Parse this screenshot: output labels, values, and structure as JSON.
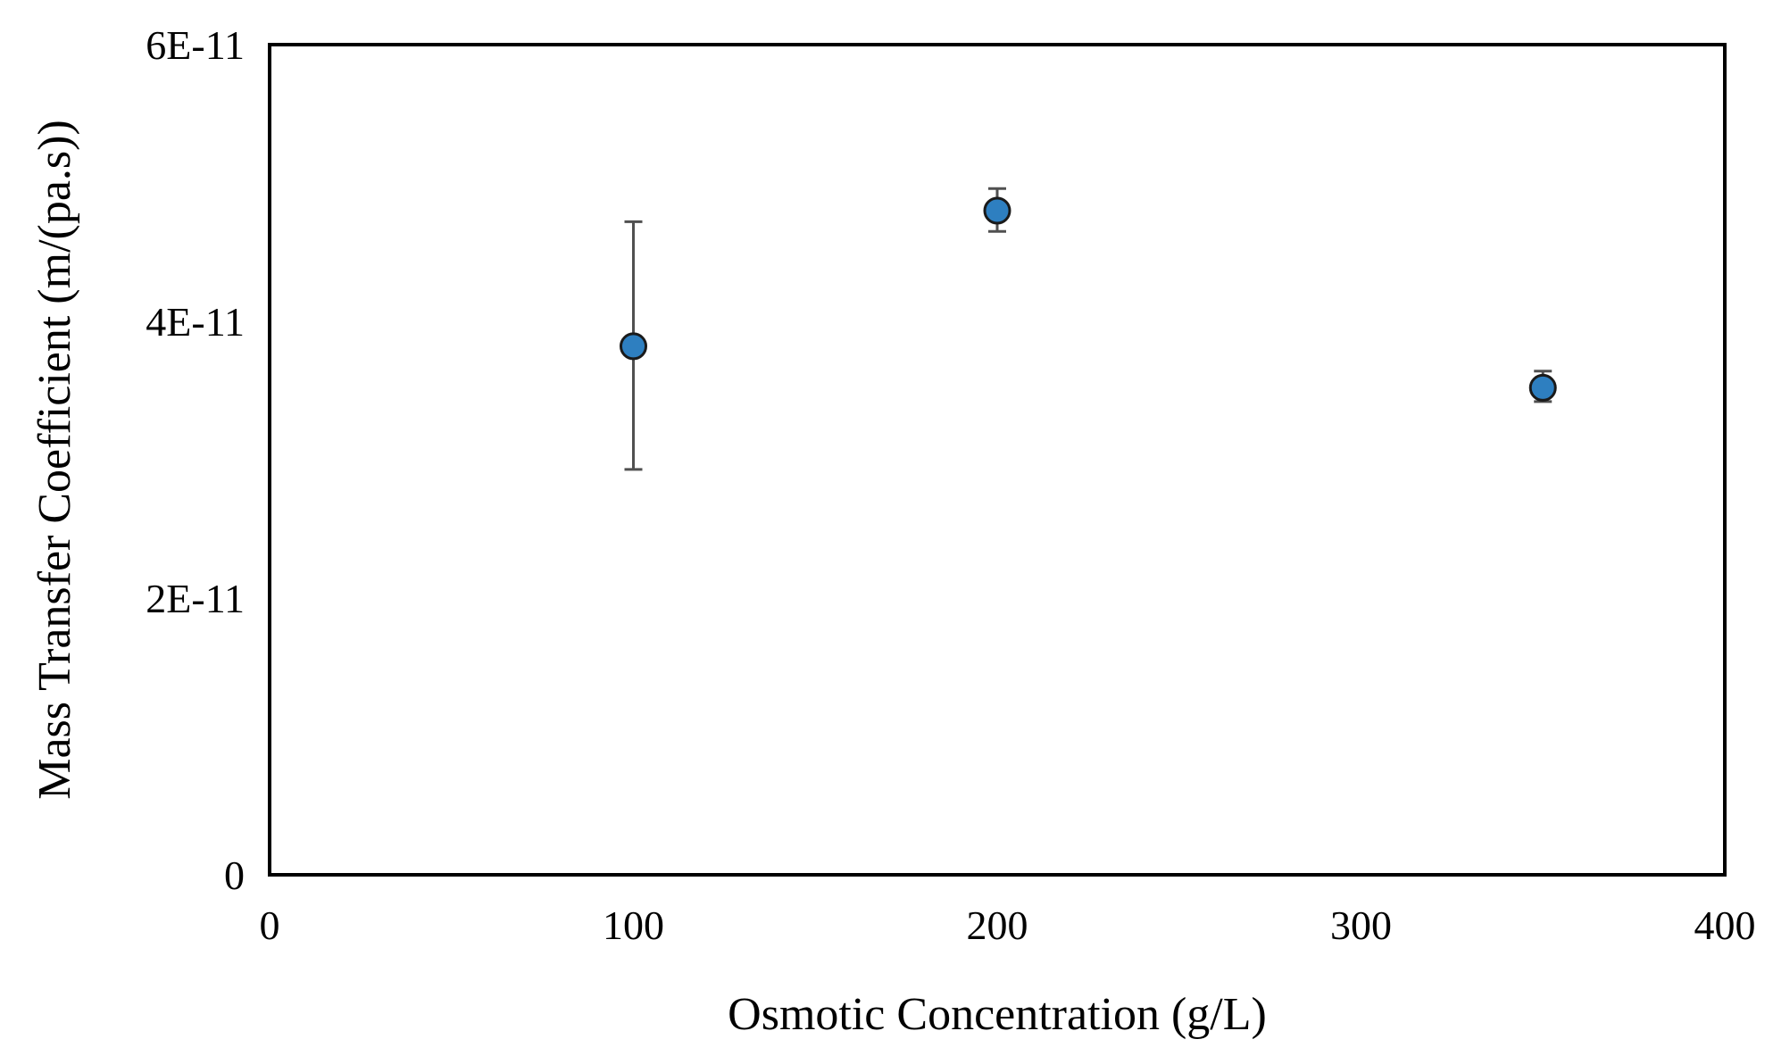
{
  "chart_data": {
    "type": "scatter",
    "title": "",
    "xlabel": "Osmotic Concentration (g/L)",
    "ylabel": "Mass Transfer Coefficient (m/(pa.s))",
    "xlim": [
      0,
      400
    ],
    "ylim": [
      0,
      6e-11
    ],
    "x_ticks": [
      0,
      100,
      200,
      300,
      400
    ],
    "x_tick_labels": [
      "0",
      "100",
      "200",
      "300",
      "400"
    ],
    "y_ticks": [
      0,
      2e-11,
      4e-11,
      6e-11
    ],
    "y_tick_labels": [
      "0",
      "2E-11",
      "4E-11",
      "6E-11"
    ],
    "grid": false,
    "legend": "none",
    "series": [
      {
        "x": [
          100,
          200,
          350
        ],
        "y": [
          3.82e-11,
          4.8e-11,
          3.52e-11
        ],
        "y_err_upper": [
          4.72e-11,
          4.96e-11,
          3.64e-11
        ],
        "y_err_lower": [
          2.93e-11,
          4.65e-11,
          3.42e-11
        ],
        "color": "#2e7fc0"
      }
    ]
  }
}
